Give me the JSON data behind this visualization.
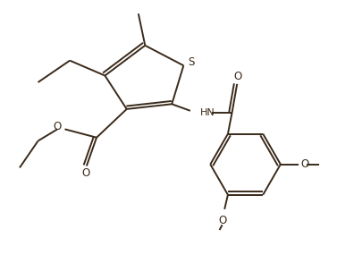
{
  "bg_color": "#ffffff",
  "line_color": "#3a2a1a",
  "line_width": 1.4,
  "figsize": [
    3.77,
    2.85
  ],
  "dpi": 100,
  "xlim": [
    0,
    10
  ],
  "ylim": [
    0,
    7.5
  ]
}
